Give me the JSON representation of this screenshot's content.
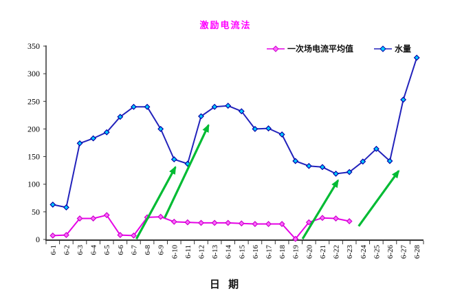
{
  "title": "激励电流法",
  "title_color": "#FF00FF",
  "xaxis_title": "日 期",
  "chart_data": {
    "type": "line",
    "title": "激励电流法",
    "xlabel": "日期",
    "ylabel": "",
    "ylim": [
      0,
      350
    ],
    "yticks": [
      0,
      50,
      100,
      150,
      200,
      250,
      300,
      350
    ],
    "grid": false,
    "legend_position": "top-right",
    "categories": [
      "6-1",
      "6-2",
      "6-3",
      "6-4",
      "6-5",
      "6-6",
      "6-7",
      "6-8",
      "6-9",
      "6-10",
      "6-11",
      "6-12",
      "6-13",
      "6-14",
      "6-15",
      "6-16",
      "6-17",
      "6-18",
      "6-19",
      "6-20",
      "6-21",
      "6-22",
      "6-23",
      "6-24",
      "6-25",
      "6-26",
      "6-27",
      "6-28"
    ],
    "series": [
      {
        "name": "一次场电流平均值",
        "line_color": "#E600E6",
        "marker_fill": "#FF66FF",
        "marker_stroke": "#CC00CC",
        "values": [
          7,
          8,
          38,
          38,
          44,
          8,
          7,
          40,
          41,
          32,
          31,
          30,
          30,
          30,
          29,
          28,
          28,
          28,
          1,
          31,
          39,
          38,
          33
        ]
      },
      {
        "name": "水量",
        "line_color": "#2222BB",
        "marker_fill": "#00CCFF",
        "marker_stroke": "#0000AA",
        "values": [
          63,
          58,
          174,
          183,
          194,
          222,
          240,
          240,
          200,
          145,
          137,
          223,
          240,
          242,
          232,
          200,
          201,
          190,
          142,
          133,
          131,
          119,
          122,
          141,
          164,
          142,
          253,
          329
        ]
      }
    ],
    "annotations": {
      "arrow_color": "#00BB33",
      "arrows": [
        {
          "from": {
            "x": 6.2,
            "y": 1
          },
          "to": {
            "x": 9.1,
            "y": 131
          }
        },
        {
          "from": {
            "x": 8.3,
            "y": 39
          },
          "to": {
            "x": 11.55,
            "y": 207
          }
        },
        {
          "from": {
            "x": 18.53,
            "y": 1
          },
          "to": {
            "x": 21.16,
            "y": 107
          }
        },
        {
          "from": {
            "x": 22.69,
            "y": 24
          },
          "to": {
            "x": 25.66,
            "y": 124
          }
        }
      ]
    },
    "axis_color": "#333333",
    "tick_label_color": "#000000"
  }
}
